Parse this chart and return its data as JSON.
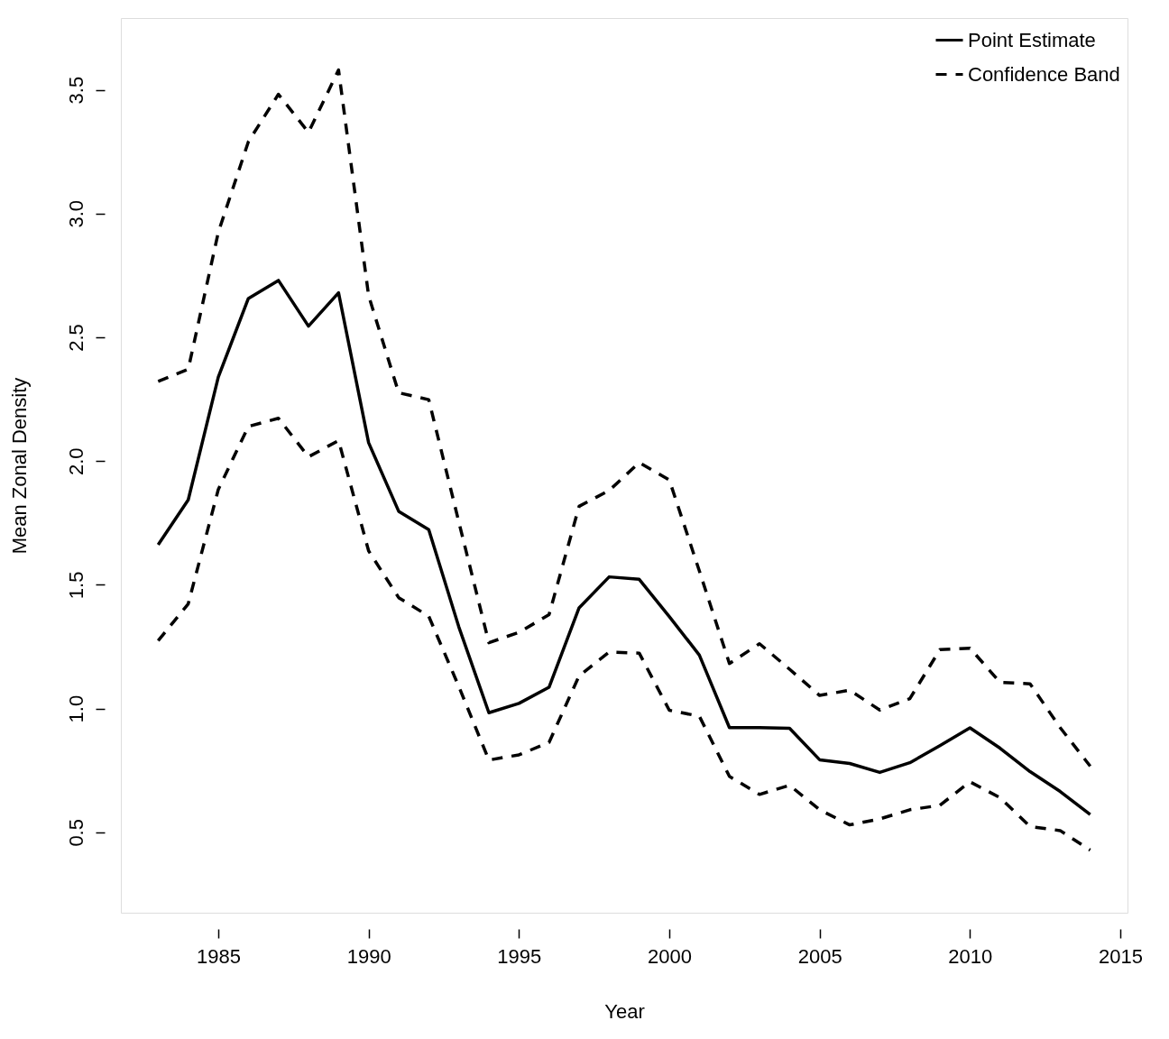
{
  "chart_data": {
    "type": "line",
    "xlabel": "Year",
    "ylabel": "Mean  Zonal Density",
    "x": [
      1983,
      1984,
      1985,
      1986,
      1987,
      1988,
      1989,
      1990,
      1991,
      1992,
      1993,
      1994,
      1995,
      1996,
      1997,
      1998,
      1999,
      2000,
      2001,
      2002,
      2003,
      2004,
      2005,
      2006,
      2007,
      2008,
      2009,
      2010,
      2011,
      2012,
      2013,
      2014
    ],
    "series": [
      {
        "name": "Point Estimate",
        "color": "#000000",
        "line_style": "solid",
        "values": [
          1.662,
          1.843,
          2.339,
          2.657,
          2.73,
          2.545,
          2.68,
          2.074,
          1.797,
          1.723,
          1.33,
          0.983,
          1.021,
          1.086,
          1.407,
          1.532,
          1.522,
          1.372,
          1.216,
          0.923,
          0.923,
          0.92,
          0.793,
          0.778,
          0.742,
          0.781,
          0.85,
          0.922,
          0.84,
          0.745,
          0.665,
          0.572
        ]
      },
      {
        "name": "Confidence Band",
        "color": "#000000",
        "line_style": "dashed",
        "values": [
          2.322,
          2.371,
          2.924,
          3.29,
          3.482,
          3.328,
          3.58,
          2.668,
          2.276,
          2.248,
          1.754,
          1.266,
          1.308,
          1.379,
          1.817,
          1.881,
          1.994,
          1.924,
          1.556,
          1.182,
          1.262,
          1.159,
          1.053,
          1.074,
          0.994,
          1.04,
          1.238,
          1.244,
          1.106,
          1.1,
          0.923,
          0.767
        ]
      },
      {
        "color": "#000000",
        "line_style": "dashed",
        "values": [
          1.274,
          1.423,
          1.885,
          2.14,
          2.173,
          2.017,
          2.083,
          1.637,
          1.448,
          1.373,
          1.089,
          0.792,
          0.813,
          0.863,
          1.132,
          1.228,
          1.224,
          0.993,
          0.969,
          0.726,
          0.653,
          0.69,
          0.591,
          0.53,
          0.554,
          0.591,
          0.609,
          0.704,
          0.64,
          0.523,
          0.507,
          0.428
        ]
      }
    ],
    "xlim": [
      1981.76,
      2015.24
    ],
    "ylim": [
      0.175,
      3.79
    ],
    "xticks": [
      1985,
      1990,
      1995,
      2000,
      2005,
      2010,
      2015
    ],
    "yticks": [
      0.5,
      {
        "value": 1,
        "label": "1.0"
      },
      1.5,
      {
        "value": 2,
        "label": "2.0"
      },
      2.5,
      {
        "value": 3,
        "label": "3.0"
      },
      3.5
    ],
    "grid": false,
    "legend": "top right"
  }
}
